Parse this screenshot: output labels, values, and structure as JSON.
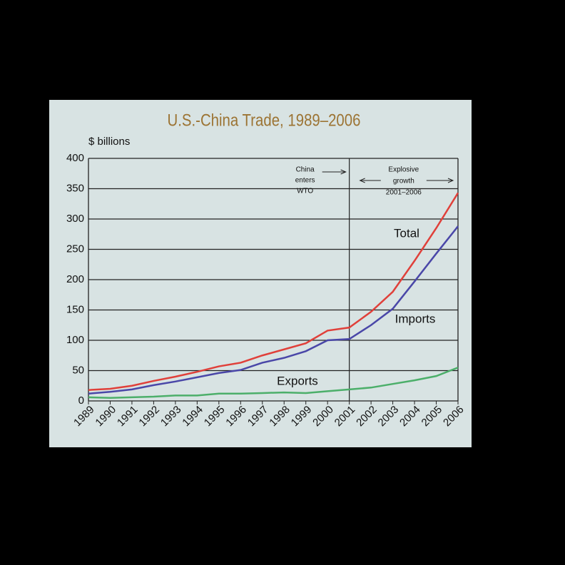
{
  "chart_data": {
    "type": "line",
    "title": "U.S.-China Trade, 1989–2006",
    "y_label": "$ billions",
    "categories": [
      "1989",
      "1990",
      "1991",
      "1992",
      "1993",
      "1994",
      "1995",
      "1996",
      "1997",
      "1998",
      "1999",
      "2000",
      "2001",
      "2002",
      "2003",
      "2004",
      "2005",
      "2006"
    ],
    "series": [
      {
        "name": "Total",
        "color": "#e0403a",
        "values": [
          18,
          20,
          25,
          33,
          40,
          48,
          57,
          63,
          75,
          85,
          95,
          116,
          121,
          147,
          180,
          231,
          285,
          343
        ]
      },
      {
        "name": "Imports",
        "color": "#4a47a8",
        "values": [
          12,
          15,
          19,
          26,
          32,
          39,
          46,
          51,
          63,
          71,
          82,
          100,
          102,
          125,
          152,
          197,
          243,
          288
        ]
      },
      {
        "name": "Exports",
        "color": "#4caf6a",
        "values": [
          6,
          5,
          6,
          7,
          9,
          9,
          12,
          12,
          13,
          14,
          13,
          16,
          19,
          22,
          28,
          34,
          41,
          55
        ]
      }
    ],
    "ylim": [
      0,
      400
    ],
    "yticks": [
      0,
      50,
      100,
      150,
      200,
      250,
      300,
      350,
      400
    ],
    "grid": true,
    "annotations": [
      {
        "lines": [
          "China",
          "enters",
          "WTO"
        ],
        "category": "2001"
      },
      {
        "lines": [
          "Explosive",
          "growth",
          "2001–2006"
        ],
        "from": "2001",
        "to": "2006"
      }
    ]
  }
}
